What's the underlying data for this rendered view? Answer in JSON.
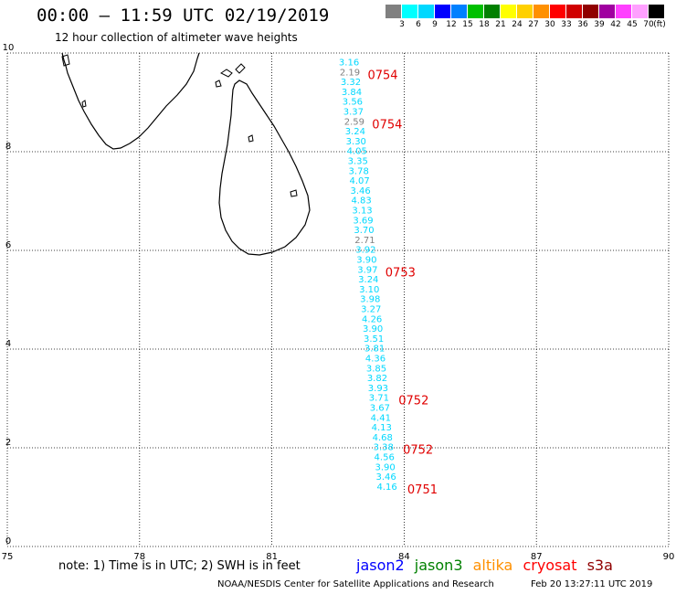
{
  "title": "00:00 – 11:59 UTC 02/19/2019",
  "subtitle": "12 hour collection of altimeter wave heights",
  "legend": {
    "colors": [
      "#808080",
      "#00ffff",
      "#00d8ff",
      "#0000ff",
      "#0080ff",
      "#00c000",
      "#008000",
      "#ffff00",
      "#ffd000",
      "#ff9000",
      "#ff0000",
      "#d00000",
      "#900000",
      "#a000a0",
      "#ff40ff",
      "#ffa0ff",
      "#000000"
    ],
    "ticks": [
      "3",
      "6",
      "9",
      "12",
      "15",
      "18",
      "21",
      "24",
      "27",
      "30",
      "33",
      "36",
      "39",
      "42",
      "45",
      "70"
    ],
    "unit": "(ft)"
  },
  "axes": {
    "x_ticks": [
      "75",
      "78",
      "81",
      "84",
      "87",
      "90"
    ],
    "y_ticks": [
      "0",
      "2",
      "4",
      "6",
      "8",
      "10"
    ]
  },
  "chart_data": {
    "type": "scatter",
    "xlim": [
      75,
      90
    ],
    "ylim": [
      0,
      10
    ],
    "series": [
      {
        "name": "jason2",
        "color": "#00d8ff",
        "points": [
          [
            82.75,
            9.75,
            "3.16"
          ],
          [
            82.77,
            9.55,
            "2.19"
          ],
          [
            82.79,
            9.35,
            "3.32"
          ],
          [
            82.81,
            9.15,
            "3.84"
          ],
          [
            82.83,
            8.95,
            "3.56"
          ],
          [
            82.85,
            8.75,
            "3.37"
          ],
          [
            82.87,
            8.55,
            "2.59"
          ],
          [
            82.89,
            8.35,
            "3.24"
          ],
          [
            82.91,
            8.15,
            "3.30"
          ],
          [
            82.93,
            7.95,
            "4.05"
          ],
          [
            82.95,
            7.75,
            "3.35"
          ],
          [
            82.97,
            7.55,
            "3.78"
          ],
          [
            82.99,
            7.35,
            "4.07"
          ],
          [
            83.01,
            7.15,
            "3.46"
          ],
          [
            83.03,
            6.95,
            "4.83"
          ],
          [
            83.05,
            6.75,
            "3.13"
          ],
          [
            83.07,
            6.55,
            "3.69"
          ],
          [
            83.09,
            6.35,
            "3.70"
          ],
          [
            83.11,
            6.15,
            "2.71"
          ],
          [
            83.13,
            5.95,
            "3.92"
          ],
          [
            83.15,
            5.75,
            "3.90"
          ],
          [
            83.17,
            5.55,
            "3.97"
          ],
          [
            83.19,
            5.35,
            "3.24"
          ],
          [
            83.21,
            5.15,
            "3.10"
          ],
          [
            83.23,
            4.95,
            "3.98"
          ],
          [
            83.25,
            4.75,
            "3.27"
          ],
          [
            83.27,
            4.55,
            "4.26"
          ],
          [
            83.29,
            4.35,
            "3.90"
          ],
          [
            83.31,
            4.15,
            "3.51"
          ],
          [
            83.33,
            3.95,
            "3.81"
          ],
          [
            83.35,
            3.75,
            "4.36"
          ],
          [
            83.37,
            3.55,
            "3.85"
          ],
          [
            83.39,
            3.35,
            "3.82"
          ],
          [
            83.41,
            3.15,
            "3.93"
          ],
          [
            83.43,
            2.95,
            "3.71"
          ],
          [
            83.45,
            2.75,
            "3.67"
          ],
          [
            83.47,
            2.55,
            "4.41"
          ],
          [
            83.49,
            2.35,
            "4.13"
          ],
          [
            83.51,
            2.15,
            "4.68"
          ],
          [
            83.53,
            1.95,
            "3.38"
          ],
          [
            83.55,
            1.75,
            "4.56"
          ],
          [
            83.57,
            1.55,
            "3.90"
          ],
          [
            83.59,
            1.35,
            "3.46"
          ],
          [
            83.61,
            1.15,
            "4.16"
          ]
        ]
      }
    ],
    "time_labels": [
      {
        "text": "0754",
        "x": 82.8,
        "y": 9.55
      },
      {
        "text": "0754",
        "x": 82.9,
        "y": 8.55
      },
      {
        "text": "0753",
        "x": 83.2,
        "y": 5.55
      },
      {
        "text": "0752",
        "x": 83.5,
        "y": 2.95
      },
      {
        "text": "0752",
        "x": 83.6,
        "y": 1.95
      },
      {
        "text": "0751",
        "x": 83.7,
        "y": 1.15
      }
    ]
  },
  "note": "note: 1) Time is in UTC; 2) SWH is in feet",
  "satellites": [
    {
      "name": "jason2",
      "color": "#0000ff"
    },
    {
      "name": "jason3",
      "color": "#008000"
    },
    {
      "name": "altika",
      "color": "#ff9000"
    },
    {
      "name": "cryosat",
      "color": "#ff0000"
    },
    {
      "name": "s3a",
      "color": "#900000"
    }
  ],
  "credit": "NOAA/NESDIS Center for Satellite Applications and Research",
  "timestamp": "Feb 20 13:27:11 UTC 2019"
}
